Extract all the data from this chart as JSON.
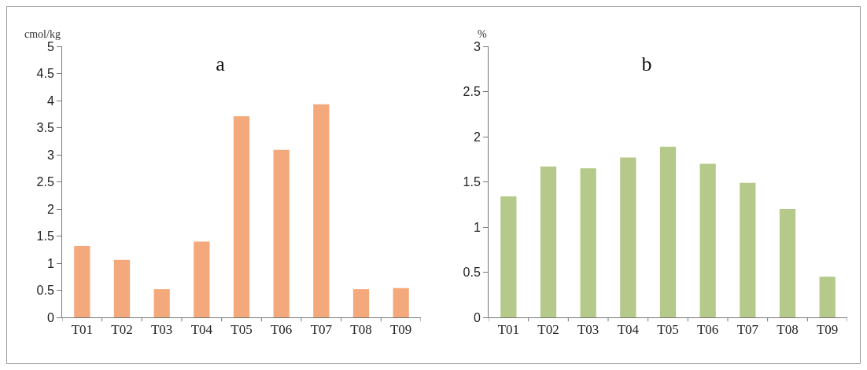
{
  "chart_data": [
    {
      "type": "bar",
      "title": "a",
      "ylabel": "cmol/kg",
      "categories": [
        "T01",
        "T02",
        "T03",
        "T04",
        "T05",
        "T06",
        "T07",
        "T08",
        "T09"
      ],
      "series": [
        {
          "color": "#f4a97c",
          "values": [
            1.32,
            1.06,
            0.52,
            1.4,
            3.71,
            3.09,
            3.93,
            0.52,
            0.54
          ]
        }
      ],
      "ylim": [
        0,
        5
      ],
      "yticks": [
        0,
        0.5,
        1,
        1.5,
        2,
        2.5,
        3,
        3.5,
        4,
        4.5,
        5
      ]
    },
    {
      "type": "bar",
      "title": "b",
      "ylabel": "%",
      "categories": [
        "T01",
        "T02",
        "T03",
        "T04",
        "T05",
        "T06",
        "T07",
        "T08",
        "T09"
      ],
      "series": [
        {
          "color": "#b5c98a",
          "values": [
            1.34,
            1.67,
            1.65,
            1.77,
            1.89,
            1.7,
            1.49,
            1.2,
            0.45
          ]
        }
      ],
      "ylim": [
        0,
        3
      ],
      "yticks": [
        0,
        0.5,
        1,
        1.5,
        2,
        2.5,
        3
      ]
    }
  ]
}
